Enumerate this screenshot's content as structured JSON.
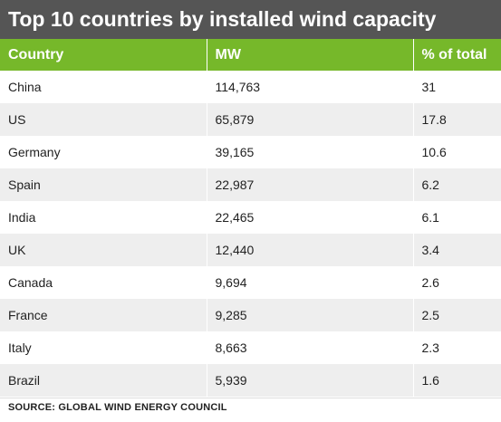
{
  "title": "Top 10 countries by installed wind capacity",
  "colors": {
    "title_background": "#555555",
    "header_background": "#76b82a",
    "row_alt_background": "#eeeeee"
  },
  "columns": [
    "Country",
    "MW",
    "% of total"
  ],
  "rows": [
    {
      "country": "China",
      "mw": "114,763",
      "pct": "31"
    },
    {
      "country": "US",
      "mw": "65,879",
      "pct": "17.8"
    },
    {
      "country": "Germany",
      "mw": "39,165",
      "pct": "10.6"
    },
    {
      "country": "Spain",
      "mw": "22,987",
      "pct": "6.2"
    },
    {
      "country": "India",
      "mw": "22,465",
      "pct": "6.1"
    },
    {
      "country": "UK",
      "mw": "12,440",
      "pct": "3.4"
    },
    {
      "country": "Canada",
      "mw": "9,694",
      "pct": "2.6"
    },
    {
      "country": "France",
      "mw": "9,285",
      "pct": "2.5"
    },
    {
      "country": "Italy",
      "mw": "8,663",
      "pct": "2.3"
    },
    {
      "country": "Brazil",
      "mw": "5,939",
      "pct": "1.6"
    }
  ],
  "source": "SOURCE: GLOBAL WIND ENERGY COUNCIL"
}
